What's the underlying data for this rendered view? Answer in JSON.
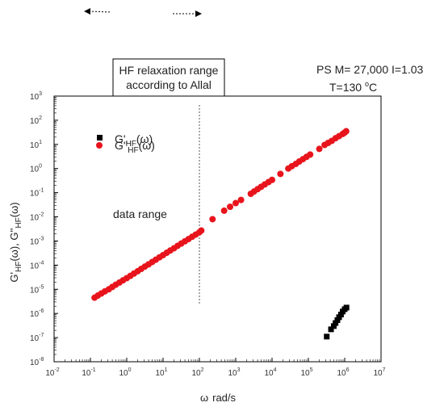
{
  "chart_data": {
    "type": "scatter",
    "xscale": "log",
    "yscale": "log",
    "xlim": [
      0.01,
      10000000
    ],
    "ylim": [
      1e-08,
      1000
    ],
    "x_tick_labels": [
      {
        "base": "10",
        "exp": "-2"
      },
      {
        "base": "10",
        "exp": "-1"
      },
      {
        "base": "10",
        "exp": "0"
      },
      {
        "base": "10",
        "exp": "1"
      },
      {
        "base": "10",
        "exp": "2"
      },
      {
        "base": "10",
        "exp": "3"
      },
      {
        "base": "10",
        "exp": "4"
      },
      {
        "base": "10",
        "exp": "5"
      },
      {
        "base": "10",
        "exp": "6"
      },
      {
        "base": "10",
        "exp": "7"
      }
    ],
    "y_tick_labels": [
      {
        "base": "10",
        "exp": "-8"
      },
      {
        "base": "10",
        "exp": "-7"
      },
      {
        "base": "10",
        "exp": "-6"
      },
      {
        "base": "10",
        "exp": "-5"
      },
      {
        "base": "10",
        "exp": "-4"
      },
      {
        "base": "10",
        "exp": "-3"
      },
      {
        "base": "10",
        "exp": "-2"
      },
      {
        "base": "10",
        "exp": "-1"
      },
      {
        "base": "10",
        "exp": "0"
      },
      {
        "base": "10",
        "exp": "1"
      },
      {
        "base": "10",
        "exp": "2"
      },
      {
        "base": "10",
        "exp": "3"
      }
    ],
    "xlabel": {
      "symbol": "ω",
      "unit": "rad/s"
    },
    "ylabel": {
      "g1": "G'",
      "sub": "HF",
      "arg": "(ω), G''",
      "sub2": "HF",
      "arg2": "(ω)"
    },
    "legend": {
      "position": "top-left",
      "entries": [
        {
          "prefix": "G'",
          "sub": "HF",
          "suffix": "(ω)",
          "marker": "square",
          "color": "#000000"
        },
        {
          "prefix": "G''",
          "sub": "HF",
          "suffix": "(ω)",
          "marker": "circle",
          "color": "#e8141c"
        }
      ]
    },
    "series": [
      {
        "marker": "circle",
        "color": "#e8141c",
        "points": [
          [
            0.13,
            4.5e-06
          ],
          [
            0.16,
            5.5e-06
          ],
          [
            0.2,
            6.7e-06
          ],
          [
            0.25,
            8.2e-06
          ],
          [
            0.32,
            1e-05
          ],
          [
            0.4,
            1.25e-05
          ],
          [
            0.5,
            1.55e-05
          ],
          [
            0.63,
            1.9e-05
          ],
          [
            0.79,
            2.35e-05
          ],
          [
            1.0,
            2.9e-05
          ],
          [
            1.26,
            3.6e-05
          ],
          [
            1.58,
            4.5e-05
          ],
          [
            2.0,
            5.6e-05
          ],
          [
            2.51,
            7e-05
          ],
          [
            3.16,
            8.7e-05
          ],
          [
            3.98,
            0.000108
          ],
          [
            5.01,
            0.000135
          ],
          [
            6.31,
            0.000168
          ],
          [
            7.94,
            0.00021
          ],
          [
            10.0,
            0.00026
          ],
          [
            12.6,
            0.000325
          ],
          [
            15.8,
            0.000405
          ],
          [
            20.0,
            0.0005
          ],
          [
            25.1,
            0.00063
          ],
          [
            31.6,
            0.00078
          ],
          [
            39.8,
            0.00097
          ],
          [
            50.1,
            0.0012
          ],
          [
            63.1,
            0.0015
          ],
          [
            79.4,
            0.00185
          ],
          [
            100.0,
            0.0023
          ],
          [
            113.0,
            0.0027
          ],
          [
            230,
            0.008
          ],
          [
            480,
            0.018
          ],
          [
            700,
            0.026
          ],
          [
            1000,
            0.037
          ],
          [
            1400,
            0.05
          ],
          [
            2600,
            0.09
          ],
          [
            3200,
            0.112
          ],
          [
            4000,
            0.14
          ],
          [
            5000,
            0.175
          ],
          [
            6300,
            0.22
          ],
          [
            8000,
            0.275
          ],
          [
            10000,
            0.34
          ],
          [
            17000,
            0.6
          ],
          [
            28000,
            1.0
          ],
          [
            35000,
            1.25
          ],
          [
            45000,
            1.55
          ],
          [
            56000,
            1.95
          ],
          [
            71000,
            2.45
          ],
          [
            89000,
            3.05
          ],
          [
            112000,
            3.8
          ],
          [
            200000,
            6.5
          ],
          [
            280000,
            9.5
          ],
          [
            350000,
            11.5
          ],
          [
            440000,
            14.0
          ],
          [
            560000,
            18.0
          ],
          [
            700000,
            22.0
          ],
          [
            880000,
            27.0
          ],
          [
            1000000,
            31.0
          ],
          [
            1100000,
            35.0
          ]
        ]
      },
      {
        "marker": "square",
        "color": "#000000",
        "points": [
          [
            320000,
            1.1e-07
          ],
          [
            420000,
            2.2e-07
          ],
          [
            500000,
            3e-07
          ],
          [
            560000,
            4e-07
          ],
          [
            630000,
            5.3e-07
          ],
          [
            700000,
            7e-07
          ],
          [
            790000,
            9e-07
          ],
          [
            880000,
            1.2e-06
          ],
          [
            1000000,
            1.5e-06
          ],
          [
            1120000,
            1.75e-06
          ]
        ]
      }
    ],
    "vline_x": 100,
    "annotations": {
      "box_line1": "HF relaxation range",
      "box_line2": "according to Allal",
      "sample_line": "PS M= 27,000 I=1.03",
      "temp_prefix": "T=130 ",
      "temp_deg": "o",
      "temp_unit": "C",
      "data_range": "data range"
    }
  }
}
